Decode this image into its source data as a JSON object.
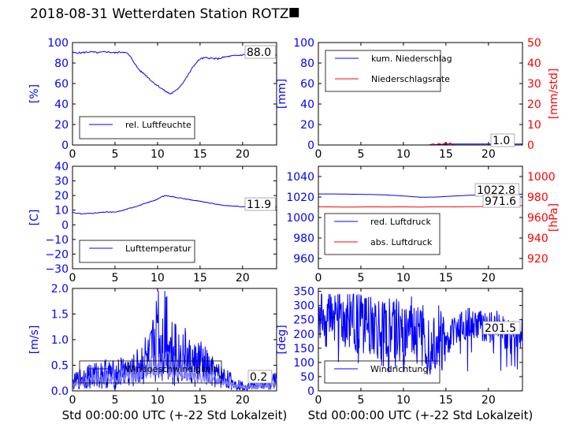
{
  "title": "2018-08-31 Wetterdaten Station ROTZ",
  "title_suffix": "⯀",
  "colors": {
    "blue": "#0000ff",
    "red": "#ff0000",
    "light_blue": "#8080ff",
    "black": "#000000"
  },
  "chart_data": [
    {
      "type": "line",
      "xlim": [
        0,
        24
      ],
      "xticks": [
        "0",
        "5",
        "10",
        "15",
        "20"
      ],
      "ylim": [
        0,
        100
      ],
      "yticks": [
        "0",
        "20",
        "40",
        "60",
        "80",
        "100"
      ],
      "ylabel": "[%]",
      "value_label": "88.0",
      "legend_loc": "lower-left",
      "series": [
        {
          "name": "rel. Luftfeuchte",
          "color": "#0000ff",
          "x": [
            0,
            1,
            2,
            3,
            4,
            5,
            6,
            6.5,
            7,
            7.5,
            8,
            8.5,
            9,
            9.5,
            10,
            10.5,
            11,
            11.5,
            12,
            12.5,
            13,
            13.5,
            14,
            14.5,
            15,
            15.5,
            16,
            17,
            18,
            19,
            20,
            21,
            22,
            23,
            24
          ],
          "y": [
            90,
            90,
            91,
            90,
            91,
            90,
            91,
            89,
            84,
            77,
            72,
            69,
            65,
            61,
            58,
            55,
            52,
            50,
            52,
            56,
            61,
            67,
            74,
            80,
            84,
            85,
            85,
            84,
            86,
            87,
            88,
            88,
            88,
            88,
            88
          ]
        }
      ]
    },
    {
      "type": "line",
      "xlim": [
        0,
        24
      ],
      "xticks": [
        "0",
        "5",
        "10",
        "15",
        "20"
      ],
      "ylim": [
        0,
        100
      ],
      "yticks": [
        "0",
        "20",
        "40",
        "60",
        "80",
        "100"
      ],
      "ylabel": "[mm]",
      "y2lim": [
        0,
        50
      ],
      "y2ticks": [
        "0",
        "10",
        "20",
        "30",
        "40",
        "50"
      ],
      "y2label": "[mm/std]",
      "value_label": "1.0",
      "legend_loc": "upper-left",
      "series": [
        {
          "name": "kum. Niederschlag",
          "color": "#0000ff",
          "axis": "left",
          "x": [
            0,
            13,
            13.5,
            14,
            15,
            15.5,
            16,
            24
          ],
          "y": [
            0,
            0,
            0.2,
            0.5,
            0.8,
            1.0,
            1.0,
            1.0
          ]
        },
        {
          "name": "Niederschlagsrate",
          "color": "#ff0000",
          "axis": "right",
          "x": [
            0,
            13,
            13.5,
            13.8,
            14.2,
            14.5,
            15,
            15.2,
            15.5,
            15.8,
            16.2,
            17,
            24
          ],
          "y": [
            0,
            0,
            0.6,
            0,
            0.8,
            0.2,
            1.2,
            0.4,
            1.0,
            0.2,
            0,
            0,
            0
          ]
        }
      ]
    },
    {
      "type": "line",
      "xlim": [
        0,
        24
      ],
      "xticks": [
        "0",
        "5",
        "10",
        "15",
        "20"
      ],
      "ylim": [
        -30,
        40
      ],
      "yticks": [
        "−30",
        "−20",
        "−10",
        "0",
        "10",
        "20",
        "30",
        "40"
      ],
      "ylabel": "[C]",
      "value_label": "11.9",
      "legend_loc": "lower-left",
      "series": [
        {
          "name": "Lufttemperatur",
          "color": "#0000ff",
          "x": [
            0,
            1,
            2,
            3,
            4,
            5,
            6,
            7,
            8,
            9,
            10,
            10.5,
            11,
            11.5,
            12,
            13,
            14,
            15,
            16,
            17,
            18,
            19,
            20,
            21,
            22,
            23,
            24
          ],
          "y": [
            8.5,
            7.5,
            7.8,
            8.2,
            8.8,
            8.6,
            10,
            11.8,
            13.5,
            15.5,
            17.5,
            19.3,
            20,
            19.5,
            19,
            18,
            17,
            16,
            15,
            14,
            13.2,
            12.8,
            12.4,
            12.2,
            12,
            11.9,
            11.9
          ]
        }
      ]
    },
    {
      "type": "line",
      "xlim": [
        0,
        24
      ],
      "xticks": [
        "0",
        "5",
        "10",
        "15",
        "20"
      ],
      "ylim": [
        950,
        1050
      ],
      "yticks": [
        "960",
        "980",
        "1000",
        "1020",
        "1040"
      ],
      "y2lim": [
        910,
        1010
      ],
      "y2ticks": [
        "920",
        "940",
        "960",
        "980",
        "1000"
      ],
      "y2label": "[hPa]",
      "value_labels": [
        "1022.8",
        "971.6"
      ],
      "legend_loc": "lower-left",
      "series": [
        {
          "name": "red. Luftdruck",
          "color": "#0000ff",
          "axis": "left",
          "x": [
            0,
            2,
            4,
            6,
            8,
            10,
            12,
            14,
            16,
            18,
            20,
            22,
            24
          ],
          "y": [
            1023,
            1023,
            1022.7,
            1022.5,
            1022,
            1021,
            1019.8,
            1020,
            1021,
            1021.8,
            1022.5,
            1022.8,
            1022.8
          ]
        },
        {
          "name": "abs. Luftdruck",
          "color": "#ff0000",
          "axis": "right",
          "x": [
            0,
            2,
            4,
            6,
            8,
            10,
            12,
            14,
            16,
            18,
            20,
            22,
            24
          ],
          "y": [
            970.5,
            970.3,
            970.2,
            970.4,
            970.3,
            970.4,
            970.2,
            970.5,
            970.4,
            970.6,
            970.8,
            971.2,
            971.6
          ]
        }
      ]
    },
    {
      "type": "line",
      "xlim": [
        0,
        24
      ],
      "xticks": [
        "0",
        "5",
        "10",
        "15",
        "20"
      ],
      "ylim": [
        0,
        2.0
      ],
      "yticks": [
        "0.0",
        "0.5",
        "1.0",
        "1.5",
        "2.0"
      ],
      "ylabel": "[m/s]",
      "xlabel": "Std 00:00:00 UTC (+-22 Std Lokalzeit)",
      "value_label": "0.2",
      "legend_loc": "lower-left",
      "series": [
        {
          "name": "Windgeschwindigkeit",
          "color": "#0000ff",
          "x": [
            0,
            1,
            2,
            3,
            4,
            5,
            6,
            7,
            8,
            8.5,
            9,
            9.5,
            9.8,
            10,
            10.2,
            10.5,
            11,
            11.5,
            12,
            12.5,
            13,
            14,
            15,
            16,
            17,
            18,
            19,
            20,
            21,
            22,
            23,
            24
          ],
          "y": [
            0.15,
            0.25,
            0.3,
            0.3,
            0.35,
            0.3,
            0.4,
            0.35,
            0.5,
            0.6,
            0.55,
            0.8,
            1.1,
            1.8,
            1.0,
            0.9,
            1.3,
            0.8,
            0.9,
            0.6,
            0.7,
            0.5,
            0.55,
            0.4,
            0.3,
            0.25,
            0.15,
            0.1,
            0.1,
            0.12,
            0.18,
            0.2
          ]
        },
        {
          "name": "",
          "color": "#8080ff",
          "x": [
            0,
            1,
            2,
            3,
            4,
            5,
            6,
            7,
            8,
            9,
            10,
            11,
            12,
            13,
            14,
            15,
            16,
            17,
            18,
            19,
            20,
            21,
            22,
            23,
            24
          ],
          "y": [
            0.1,
            0.15,
            0.2,
            0.25,
            0.25,
            0.2,
            0.3,
            0.3,
            0.35,
            0.45,
            0.5,
            0.55,
            0.5,
            0.4,
            0.35,
            0.3,
            0.25,
            0.2,
            0.15,
            0.1,
            0.08,
            0.08,
            0.1,
            0.12,
            0.15
          ]
        }
      ]
    },
    {
      "type": "line",
      "xlim": [
        0,
        24
      ],
      "xticks": [
        "0",
        "5",
        "10",
        "15",
        "20"
      ],
      "ylim": [
        0,
        360
      ],
      "yticks": [
        "0",
        "50",
        "100",
        "150",
        "200",
        "250",
        "300",
        "350"
      ],
      "ylabel": "[deg]",
      "xlabel": "Std 00:00:00 UTC (+-22 Std Lokalzeit)",
      "value_label": "201.5",
      "legend_loc": "lower-left",
      "series": [
        {
          "name": "Windrichtung",
          "color": "#0000ff",
          "x": [
            0,
            1,
            2,
            3,
            4,
            5,
            6,
            7,
            8,
            9,
            10,
            11,
            12,
            13,
            14,
            15,
            16,
            17,
            18,
            19,
            20,
            21,
            22,
            23,
            24
          ],
          "y": [
            280,
            260,
            300,
            240,
            270,
            230,
            250,
            210,
            200,
            220,
            180,
            240,
            190,
            170,
            200,
            160,
            220,
            230,
            240,
            230,
            220,
            230,
            200,
            210,
            201.5
          ]
        }
      ]
    }
  ]
}
